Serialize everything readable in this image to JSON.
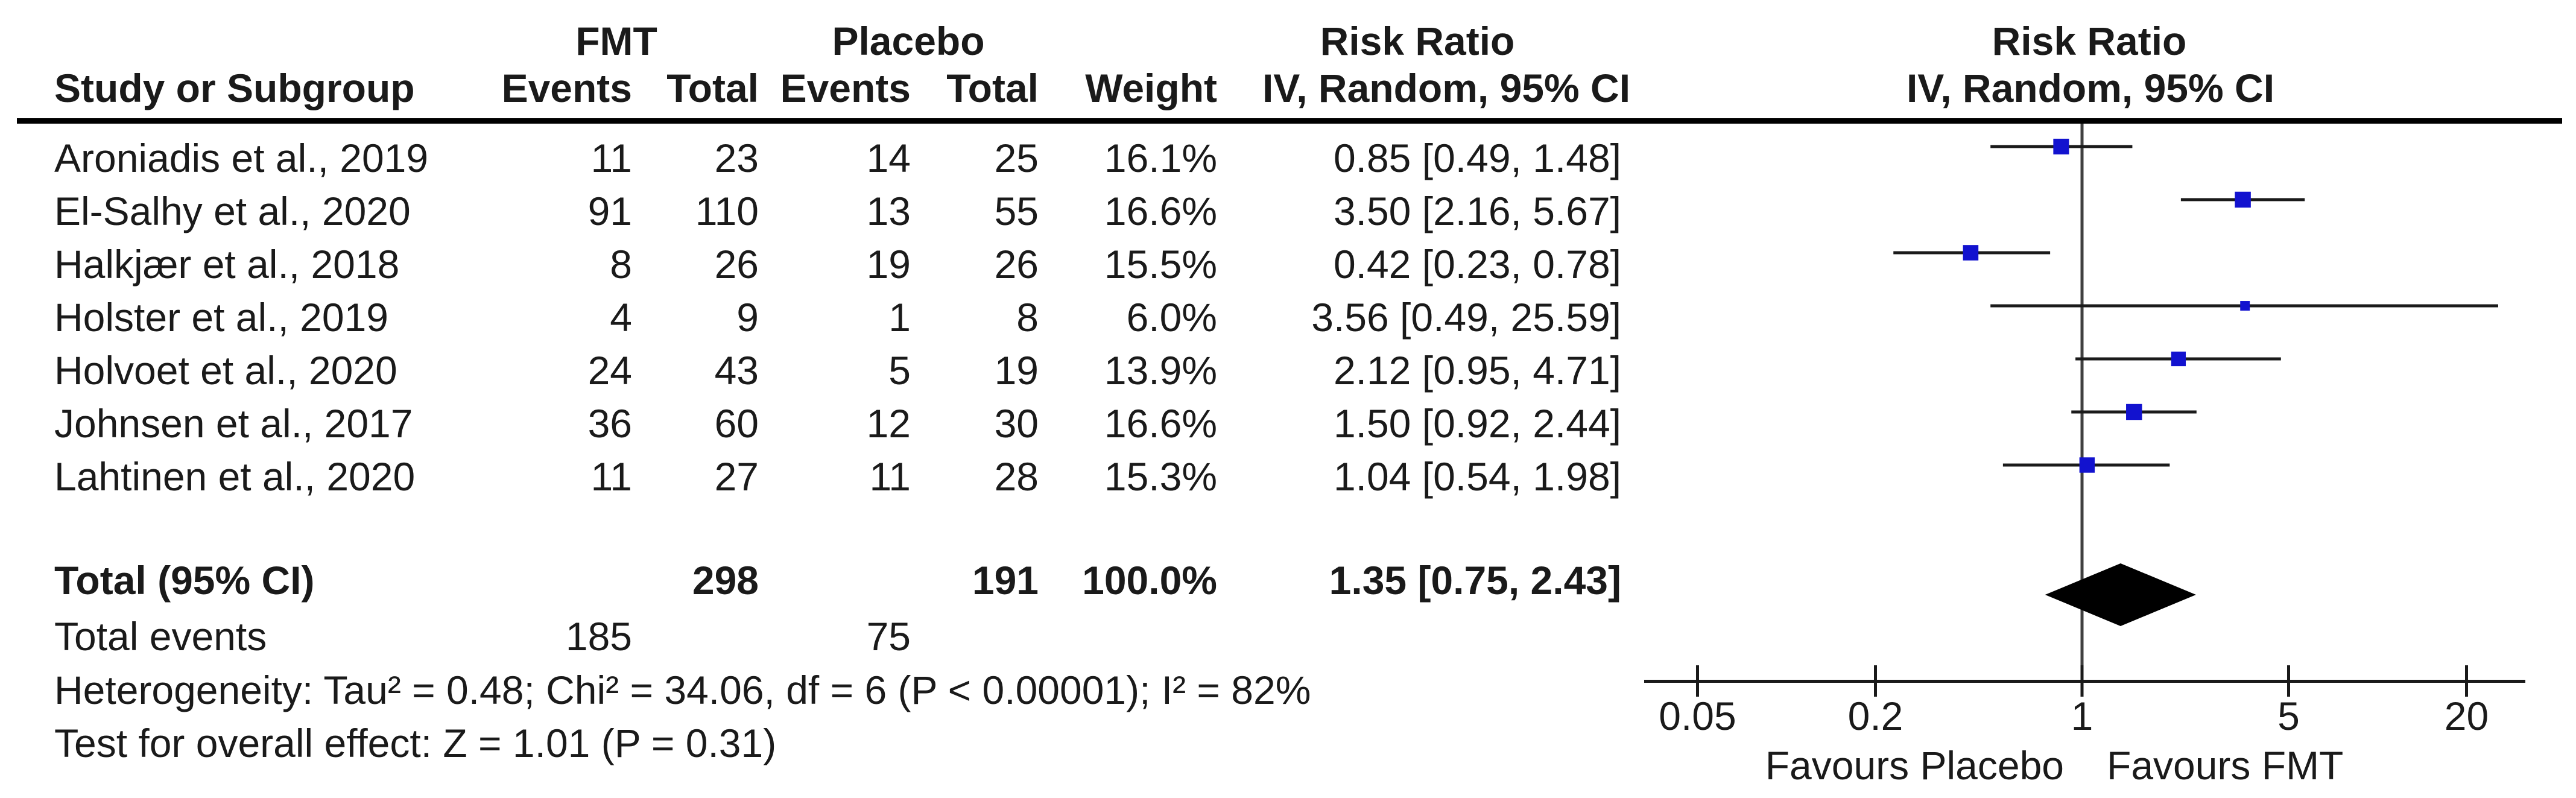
{
  "figure": {
    "group_headers": {
      "fmt": "FMT",
      "placebo": "Placebo",
      "risk_ratio_left": "Risk Ratio",
      "risk_ratio_right": "Risk Ratio"
    },
    "column_headers": {
      "study": "Study or Subgroup",
      "fmt_events": "Events",
      "fmt_total": "Total",
      "placebo_events": "Events",
      "placebo_total": "Total",
      "weight": "Weight",
      "ci_left": "IV, Random, 95% CI",
      "ci_right": "IV, Random, 95% CI"
    }
  },
  "total_row": {
    "label": "Total (95% CI)",
    "fmt_total": "298",
    "placebo_total": "191",
    "weight": "100.0%",
    "ci_text": "1.35 [0.75, 2.43]"
  },
  "total_events_row": {
    "label": "Total events",
    "fmt_events": "185",
    "placebo_events": "75"
  },
  "heterogeneity_text": "Heterogeneity: Tau² = 0.48; Chi² = 34.06, df = 6 (P < 0.00001); I² = 82%",
  "overall_effect_text": "Test for overall effect: Z = 1.01 (P = 0.31)",
  "axis": {
    "tick_values": [
      0.05,
      0.2,
      1,
      5,
      20
    ],
    "tick_labels": [
      "0.05",
      "0.2",
      "1",
      "5",
      "20"
    ],
    "favours_left": "Favours Placebo",
    "favours_right": "Favours FMT"
  },
  "colors": {
    "marker_blue": "#1212cf",
    "ci_line": "#1a1a1a",
    "no_effect_line": "#404040",
    "diamond": "#000000",
    "rule": "#000000"
  },
  "chart_data": {
    "type": "scatter",
    "subtype": "forest-plot-meta-analysis",
    "effect_measure": "Risk Ratio, IV, Random, 95% CI",
    "x_scale": "log",
    "x_ticks": [
      0.05,
      0.2,
      1,
      5,
      20
    ],
    "x_range": [
      0.033,
      31.6
    ],
    "null_line": 1,
    "axis_labels": {
      "left": "Favours Placebo",
      "right": "Favours FMT"
    },
    "studies": [
      {
        "study": "Aroniadis et al., 2019",
        "fmt_events": 11,
        "fmt_total": 23,
        "placebo_events": 14,
        "placebo_total": 25,
        "weight_pct": 16.1,
        "rr": 0.85,
        "ci_low": 0.49,
        "ci_high": 1.48
      },
      {
        "study": "El-Salhy et al., 2020",
        "fmt_events": 91,
        "fmt_total": 110,
        "placebo_events": 13,
        "placebo_total": 55,
        "weight_pct": 16.6,
        "rr": 3.5,
        "ci_low": 2.16,
        "ci_high": 5.67
      },
      {
        "study": "Halkjær et al., 2018",
        "fmt_events": 8,
        "fmt_total": 26,
        "placebo_events": 19,
        "placebo_total": 26,
        "weight_pct": 15.5,
        "rr": 0.42,
        "ci_low": 0.23,
        "ci_high": 0.78
      },
      {
        "study": "Holster et al., 2019",
        "fmt_events": 4,
        "fmt_total": 9,
        "placebo_events": 1,
        "placebo_total": 8,
        "weight_pct": 6.0,
        "rr": 3.56,
        "ci_low": 0.49,
        "ci_high": 25.59
      },
      {
        "study": "Holvoet et al., 2020",
        "fmt_events": 24,
        "fmt_total": 43,
        "placebo_events": 5,
        "placebo_total": 19,
        "weight_pct": 13.9,
        "rr": 2.12,
        "ci_low": 0.95,
        "ci_high": 4.71
      },
      {
        "study": "Johnsen et al., 2017",
        "fmt_events": 36,
        "fmt_total": 60,
        "placebo_events": 12,
        "placebo_total": 30,
        "weight_pct": 16.6,
        "rr": 1.5,
        "ci_low": 0.92,
        "ci_high": 2.44
      },
      {
        "study": "Lahtinen et al., 2020",
        "fmt_events": 11,
        "fmt_total": 27,
        "placebo_events": 11,
        "placebo_total": 28,
        "weight_pct": 15.3,
        "rr": 1.04,
        "ci_low": 0.54,
        "ci_high": 1.98
      }
    ],
    "total": {
      "label": "Total (95% CI)",
      "fmt_total": 298,
      "placebo_total": 191,
      "weight_pct": 100.0,
      "rr": 1.35,
      "ci_low": 0.75,
      "ci_high": 2.43
    },
    "total_events": {
      "fmt": 185,
      "placebo": 75
    },
    "heterogeneity": {
      "tau2": 0.48,
      "chi2": 34.06,
      "df": 6,
      "p": "< 0.00001",
      "i2_pct": 82
    },
    "overall_effect": {
      "z": 1.01,
      "p": 0.31
    }
  }
}
